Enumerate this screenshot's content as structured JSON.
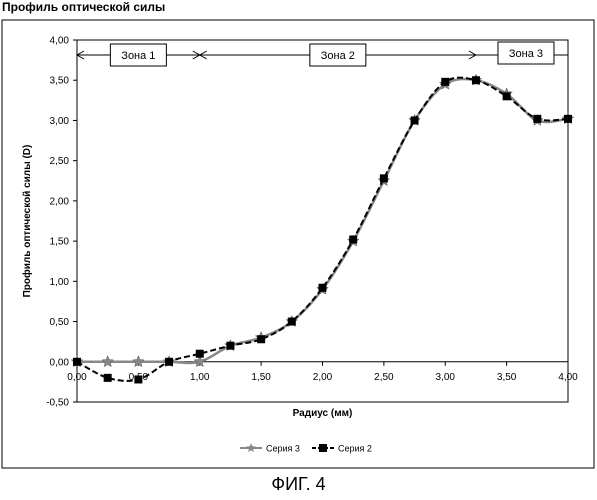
{
  "figure": {
    "title": "Профиль оптической силы",
    "caption": "ФИГ. 4"
  },
  "chart_data": {
    "type": "line",
    "title": "Профиль оптической силы",
    "xlabel": "Радиус (мм)",
    "ylabel": "Профиль оптической силы (D)",
    "xlim": [
      0,
      4
    ],
    "ylim": [
      -0.5,
      4
    ],
    "x_ticks": [
      "0,00",
      "0,50",
      "1,00",
      "1,50",
      "2,00",
      "2,50",
      "3,00",
      "3,50",
      "4,00"
    ],
    "y_ticks": [
      "-0,50",
      "0,00",
      "0,50",
      "1,00",
      "1,50",
      "2,00",
      "2,50",
      "3,00",
      "3,50",
      "4,00"
    ],
    "x_tick_values": [
      0,
      0.5,
      1,
      1.5,
      2,
      2.5,
      3,
      3.5,
      4
    ],
    "y_tick_values": [
      -0.5,
      0,
      0.5,
      1,
      1.5,
      2,
      2.5,
      3,
      3.5,
      4
    ],
    "grid": "off",
    "legend_position": "bottom-center",
    "zones": [
      {
        "label": "Зона 1",
        "from": 0,
        "to": 1
      },
      {
        "label": "Зона 2",
        "from": 1,
        "to": 3.25
      },
      {
        "label": "Зона 3",
        "from": 3.25,
        "to": 4
      }
    ],
    "series": [
      {
        "name": "Серия 3",
        "color": "#888888",
        "marker": "star",
        "line_style": "solid",
        "points": [
          [
            0,
            0
          ],
          [
            0.25,
            0
          ],
          [
            0.5,
            0
          ],
          [
            0.75,
            0
          ],
          [
            1,
            0
          ],
          [
            1.25,
            0.2
          ],
          [
            1.5,
            0.3
          ],
          [
            1.75,
            0.5
          ],
          [
            2,
            0.9
          ],
          [
            2.25,
            1.5
          ],
          [
            2.5,
            2.25
          ],
          [
            2.75,
            3.0
          ],
          [
            3,
            3.45
          ],
          [
            3.25,
            3.5
          ],
          [
            3.5,
            3.33
          ],
          [
            3.75,
            3.0
          ],
          [
            4,
            3.02
          ]
        ]
      },
      {
        "name": "Серия 2",
        "color": "#000000",
        "marker": "square",
        "line_style": "dashed",
        "points": [
          [
            0,
            0
          ],
          [
            0.25,
            -0.2
          ],
          [
            0.5,
            -0.22
          ],
          [
            0.75,
            0
          ],
          [
            1,
            0.1
          ],
          [
            1.25,
            0.2
          ],
          [
            1.5,
            0.28
          ],
          [
            1.75,
            0.5
          ],
          [
            2,
            0.92
          ],
          [
            2.25,
            1.52
          ],
          [
            2.5,
            2.28
          ],
          [
            2.75,
            3.0
          ],
          [
            3,
            3.48
          ],
          [
            3.25,
            3.5
          ],
          [
            3.5,
            3.3
          ],
          [
            3.75,
            3.02
          ],
          [
            4,
            3.02
          ]
        ]
      }
    ]
  }
}
